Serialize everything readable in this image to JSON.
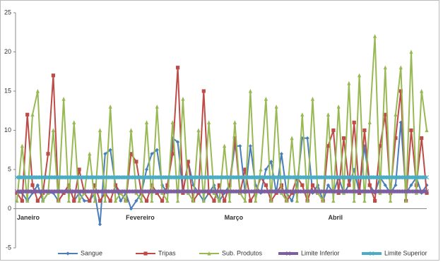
{
  "chart_data": {
    "type": "line",
    "categories": [
      "Janeiro",
      null,
      null,
      null,
      null,
      null,
      null,
      null,
      null,
      null,
      null,
      null,
      null,
      null,
      null,
      null,
      null,
      null,
      null,
      null,
      null,
      "Fevereiro",
      null,
      null,
      null,
      null,
      null,
      null,
      null,
      null,
      null,
      null,
      null,
      null,
      null,
      null,
      null,
      null,
      null,
      null,
      "Março",
      null,
      null,
      null,
      null,
      null,
      null,
      null,
      null,
      null,
      null,
      null,
      null,
      null,
      null,
      null,
      null,
      null,
      null,
      null,
      "Abril",
      null,
      null,
      null,
      null,
      null,
      null,
      null,
      null,
      null,
      null,
      null,
      null,
      null,
      null,
      null,
      null,
      null,
      null,
      null
    ],
    "series": [
      {
        "name": "Sangue",
        "color": "#4a7ebb",
        "marker": "diamond",
        "values": [
          2,
          2,
          1,
          2,
          3,
          1,
          2,
          2,
          1,
          2,
          3,
          1,
          2,
          1,
          1,
          2,
          -2,
          7,
          7.5,
          3,
          1,
          2,
          0,
          1,
          2,
          5,
          7,
          7.5,
          3,
          2,
          9,
          8.5,
          2,
          6,
          3,
          2,
          1,
          2,
          3,
          1,
          2,
          3,
          8,
          8,
          2,
          8,
          3,
          2,
          5,
          6,
          2,
          7,
          2,
          1,
          3,
          9,
          9,
          2,
          3,
          1,
          3,
          2,
          4,
          2,
          3,
          5,
          2,
          8,
          3,
          2,
          4,
          3,
          2,
          3,
          11,
          2,
          3,
          4,
          2,
          3
        ]
      },
      {
        "name": "Tripas",
        "color": "#be4b48",
        "marker": "square",
        "values": [
          2,
          1,
          12,
          3,
          1,
          2,
          7,
          17,
          1,
          2,
          3,
          1,
          5,
          2,
          1,
          3,
          1,
          2,
          1,
          3,
          2,
          1,
          7,
          6,
          2,
          1,
          3,
          2,
          1,
          3,
          7,
          18,
          2,
          6,
          1,
          2,
          15,
          2,
          1,
          3,
          1,
          3,
          9,
          2,
          5,
          1,
          2,
          4,
          3,
          1,
          2,
          3,
          1,
          2,
          4,
          3,
          1,
          3,
          2,
          1,
          8,
          10,
          2,
          9,
          3,
          11,
          2,
          10,
          3,
          1,
          8,
          12,
          2,
          9,
          15,
          1,
          10,
          3,
          9,
          2
        ]
      },
      {
        "name": "Sub. Produtos",
        "color": "#98b954",
        "marker": "triangle",
        "values": [
          1,
          8,
          1,
          12,
          15,
          1,
          2,
          10,
          1,
          14,
          1,
          11,
          1,
          2,
          7,
          1,
          10,
          1,
          13,
          1,
          2,
          1,
          10,
          2,
          1,
          11,
          1,
          13,
          2,
          1,
          11,
          1,
          14,
          2,
          1,
          10,
          1,
          11,
          2,
          1,
          8,
          1,
          11,
          2,
          1,
          15,
          1,
          5,
          14,
          1,
          13,
          2,
          1,
          9,
          1,
          12,
          1,
          14,
          2,
          1,
          12,
          1,
          13,
          2,
          16,
          1,
          17,
          1,
          11,
          22,
          2,
          18,
          1,
          12,
          18,
          1,
          20,
          2,
          15,
          10
        ]
      },
      {
        "name": "Limite Inferior",
        "color": "#7d5fa0",
        "marker": "cross",
        "values": [
          2.2,
          2.2,
          2.2,
          2.2,
          2.2,
          2.2,
          2.2,
          2.2,
          2.2,
          2.2,
          2.2,
          2.2,
          2.2,
          2.2,
          2.2,
          2.2,
          2.2,
          2.2,
          2.2,
          2.2,
          2.2,
          2.2,
          2.2,
          2.2,
          2.2,
          2.2,
          2.2,
          2.2,
          2.2,
          2.2,
          2.2,
          2.2,
          2.2,
          2.2,
          2.2,
          2.2,
          2.2,
          2.2,
          2.2,
          2.2,
          2.2,
          2.2,
          2.2,
          2.2,
          2.2,
          2.2,
          2.2,
          2.2,
          2.2,
          2.2,
          2.2,
          2.2,
          2.2,
          2.2,
          2.2,
          2.2,
          2.2,
          2.2,
          2.2,
          2.2,
          2.2,
          2.2,
          2.2,
          2.2,
          2.2,
          2.2,
          2.2,
          2.2,
          2.2,
          2.2,
          2.2,
          2.2,
          2.2,
          2.2,
          2.2,
          2.2,
          2.2,
          2.2,
          2.2,
          2.2
        ]
      },
      {
        "name": "Limite Superior",
        "color": "#4bacc6",
        "marker": "cross",
        "values": [
          4,
          4,
          4,
          4,
          4,
          4,
          4,
          4,
          4,
          4,
          4,
          4,
          4,
          4,
          4,
          4,
          4,
          4,
          4,
          4,
          4,
          4,
          4,
          4,
          4,
          4,
          4,
          4,
          4,
          4,
          4,
          4,
          4,
          4,
          4,
          4,
          4,
          4,
          4,
          4,
          4,
          4,
          4,
          4,
          4,
          4,
          4,
          4,
          4,
          4,
          4,
          4,
          4,
          4,
          4,
          4,
          4,
          4,
          4,
          4,
          4,
          4,
          4,
          4,
          4,
          4,
          4,
          4,
          4,
          4,
          4,
          4,
          4,
          4,
          4,
          4,
          4,
          4,
          4,
          4
        ]
      }
    ],
    "ylim": [
      -5,
      25
    ],
    "yticks": [
      -5,
      0,
      5,
      10,
      15,
      20,
      25
    ],
    "grid": false,
    "legend": "bottom"
  }
}
